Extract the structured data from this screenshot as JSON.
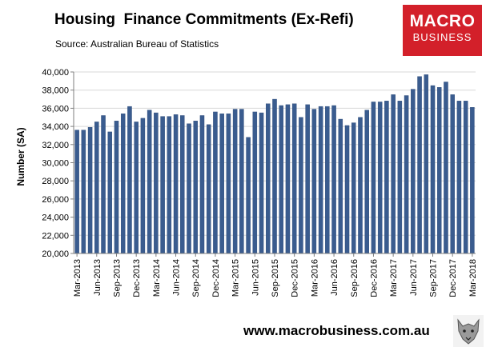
{
  "header": {
    "title": "Housing  Finance Commitments (Ex-Refi)",
    "subtitle": "Source: Australian Bureau of Statistics"
  },
  "logo": {
    "line1": "MACRO",
    "line2": "BUSINESS",
    "color": "#d3202a"
  },
  "footer": {
    "url": "www.macrobusiness.com.au"
  },
  "colors": {
    "bar": "#3a5c8f",
    "bar_edge": "#2c4a78",
    "grid": "#d8d8d8",
    "axis": "#7f7f7f"
  },
  "chart_data": {
    "type": "bar",
    "title": "Housing  Finance Commitments (Ex-Refi)",
    "ylabel": "Number (SA)",
    "xlabel": "",
    "ylim": [
      20000,
      40000
    ],
    "yticks": [
      20000,
      22000,
      24000,
      26000,
      28000,
      30000,
      32000,
      34000,
      36000,
      38000,
      40000
    ],
    "ytick_labels": [
      "20,000",
      "22,000",
      "24,000",
      "26,000",
      "28,000",
      "30,000",
      "32,000",
      "34,000",
      "36,000",
      "38,000",
      "40,000"
    ],
    "grid": true,
    "xtick_labels": [
      {
        "index": 0,
        "label": "Mar-2013"
      },
      {
        "index": 3,
        "label": "Jun-2013"
      },
      {
        "index": 6,
        "label": "Sep-2013"
      },
      {
        "index": 9,
        "label": "Dec-2013"
      },
      {
        "index": 12,
        "label": "Mar-2014"
      },
      {
        "index": 15,
        "label": "Jun-2014"
      },
      {
        "index": 18,
        "label": "Sep-2014"
      },
      {
        "index": 21,
        "label": "Dec-2014"
      },
      {
        "index": 24,
        "label": "Mar-2015"
      },
      {
        "index": 27,
        "label": "Jun-2015"
      },
      {
        "index": 30,
        "label": "Sep-2015"
      },
      {
        "index": 33,
        "label": "Dec-2015"
      },
      {
        "index": 36,
        "label": "Mar-2016"
      },
      {
        "index": 39,
        "label": "Jun-2016"
      },
      {
        "index": 42,
        "label": "Sep-2016"
      },
      {
        "index": 45,
        "label": "Dec-2016"
      },
      {
        "index": 48,
        "label": "Mar-2017"
      },
      {
        "index": 51,
        "label": "Jun-2017"
      },
      {
        "index": 54,
        "label": "Sep-2017"
      },
      {
        "index": 57,
        "label": "Dec-2017"
      },
      {
        "index": 60,
        "label": "Mar-2018"
      }
    ],
    "categories": [
      "Mar-2013",
      "Apr-2013",
      "May-2013",
      "Jun-2013",
      "Jul-2013",
      "Aug-2013",
      "Sep-2013",
      "Oct-2013",
      "Nov-2013",
      "Dec-2013",
      "Jan-2014",
      "Feb-2014",
      "Mar-2014",
      "Apr-2014",
      "May-2014",
      "Jun-2014",
      "Jul-2014",
      "Aug-2014",
      "Sep-2014",
      "Oct-2014",
      "Nov-2014",
      "Dec-2014",
      "Jan-2015",
      "Feb-2015",
      "Mar-2015",
      "Apr-2015",
      "May-2015",
      "Jun-2015",
      "Jul-2015",
      "Aug-2015",
      "Sep-2015",
      "Oct-2015",
      "Nov-2015",
      "Dec-2015",
      "Jan-2016",
      "Feb-2016",
      "Mar-2016",
      "Apr-2016",
      "May-2016",
      "Jun-2016",
      "Jul-2016",
      "Aug-2016",
      "Sep-2016",
      "Oct-2016",
      "Nov-2016",
      "Dec-2016",
      "Jan-2017",
      "Feb-2017",
      "Mar-2017",
      "Apr-2017",
      "May-2017",
      "Jun-2017",
      "Jul-2017",
      "Aug-2017",
      "Sep-2017",
      "Oct-2017",
      "Nov-2017",
      "Dec-2017",
      "Jan-2018",
      "Feb-2018",
      "Mar-2018"
    ],
    "values": [
      33600,
      33600,
      33900,
      34500,
      35200,
      33400,
      34600,
      35400,
      36200,
      34500,
      34900,
      35800,
      35500,
      35100,
      35100,
      35300,
      35200,
      34300,
      34600,
      35200,
      34200,
      35600,
      35400,
      35400,
      35900,
      35900,
      32800,
      35600,
      35500,
      36500,
      37000,
      36300,
      36400,
      36500,
      35000,
      36400,
      35900,
      36200,
      36200,
      36300,
      34800,
      34100,
      34400,
      35000,
      35800,
      36700,
      36700,
      36800,
      37500,
      36800,
      37400,
      38100,
      39500,
      39700,
      38500,
      38300,
      38900,
      37500,
      36800,
      36800,
      36100
    ]
  }
}
